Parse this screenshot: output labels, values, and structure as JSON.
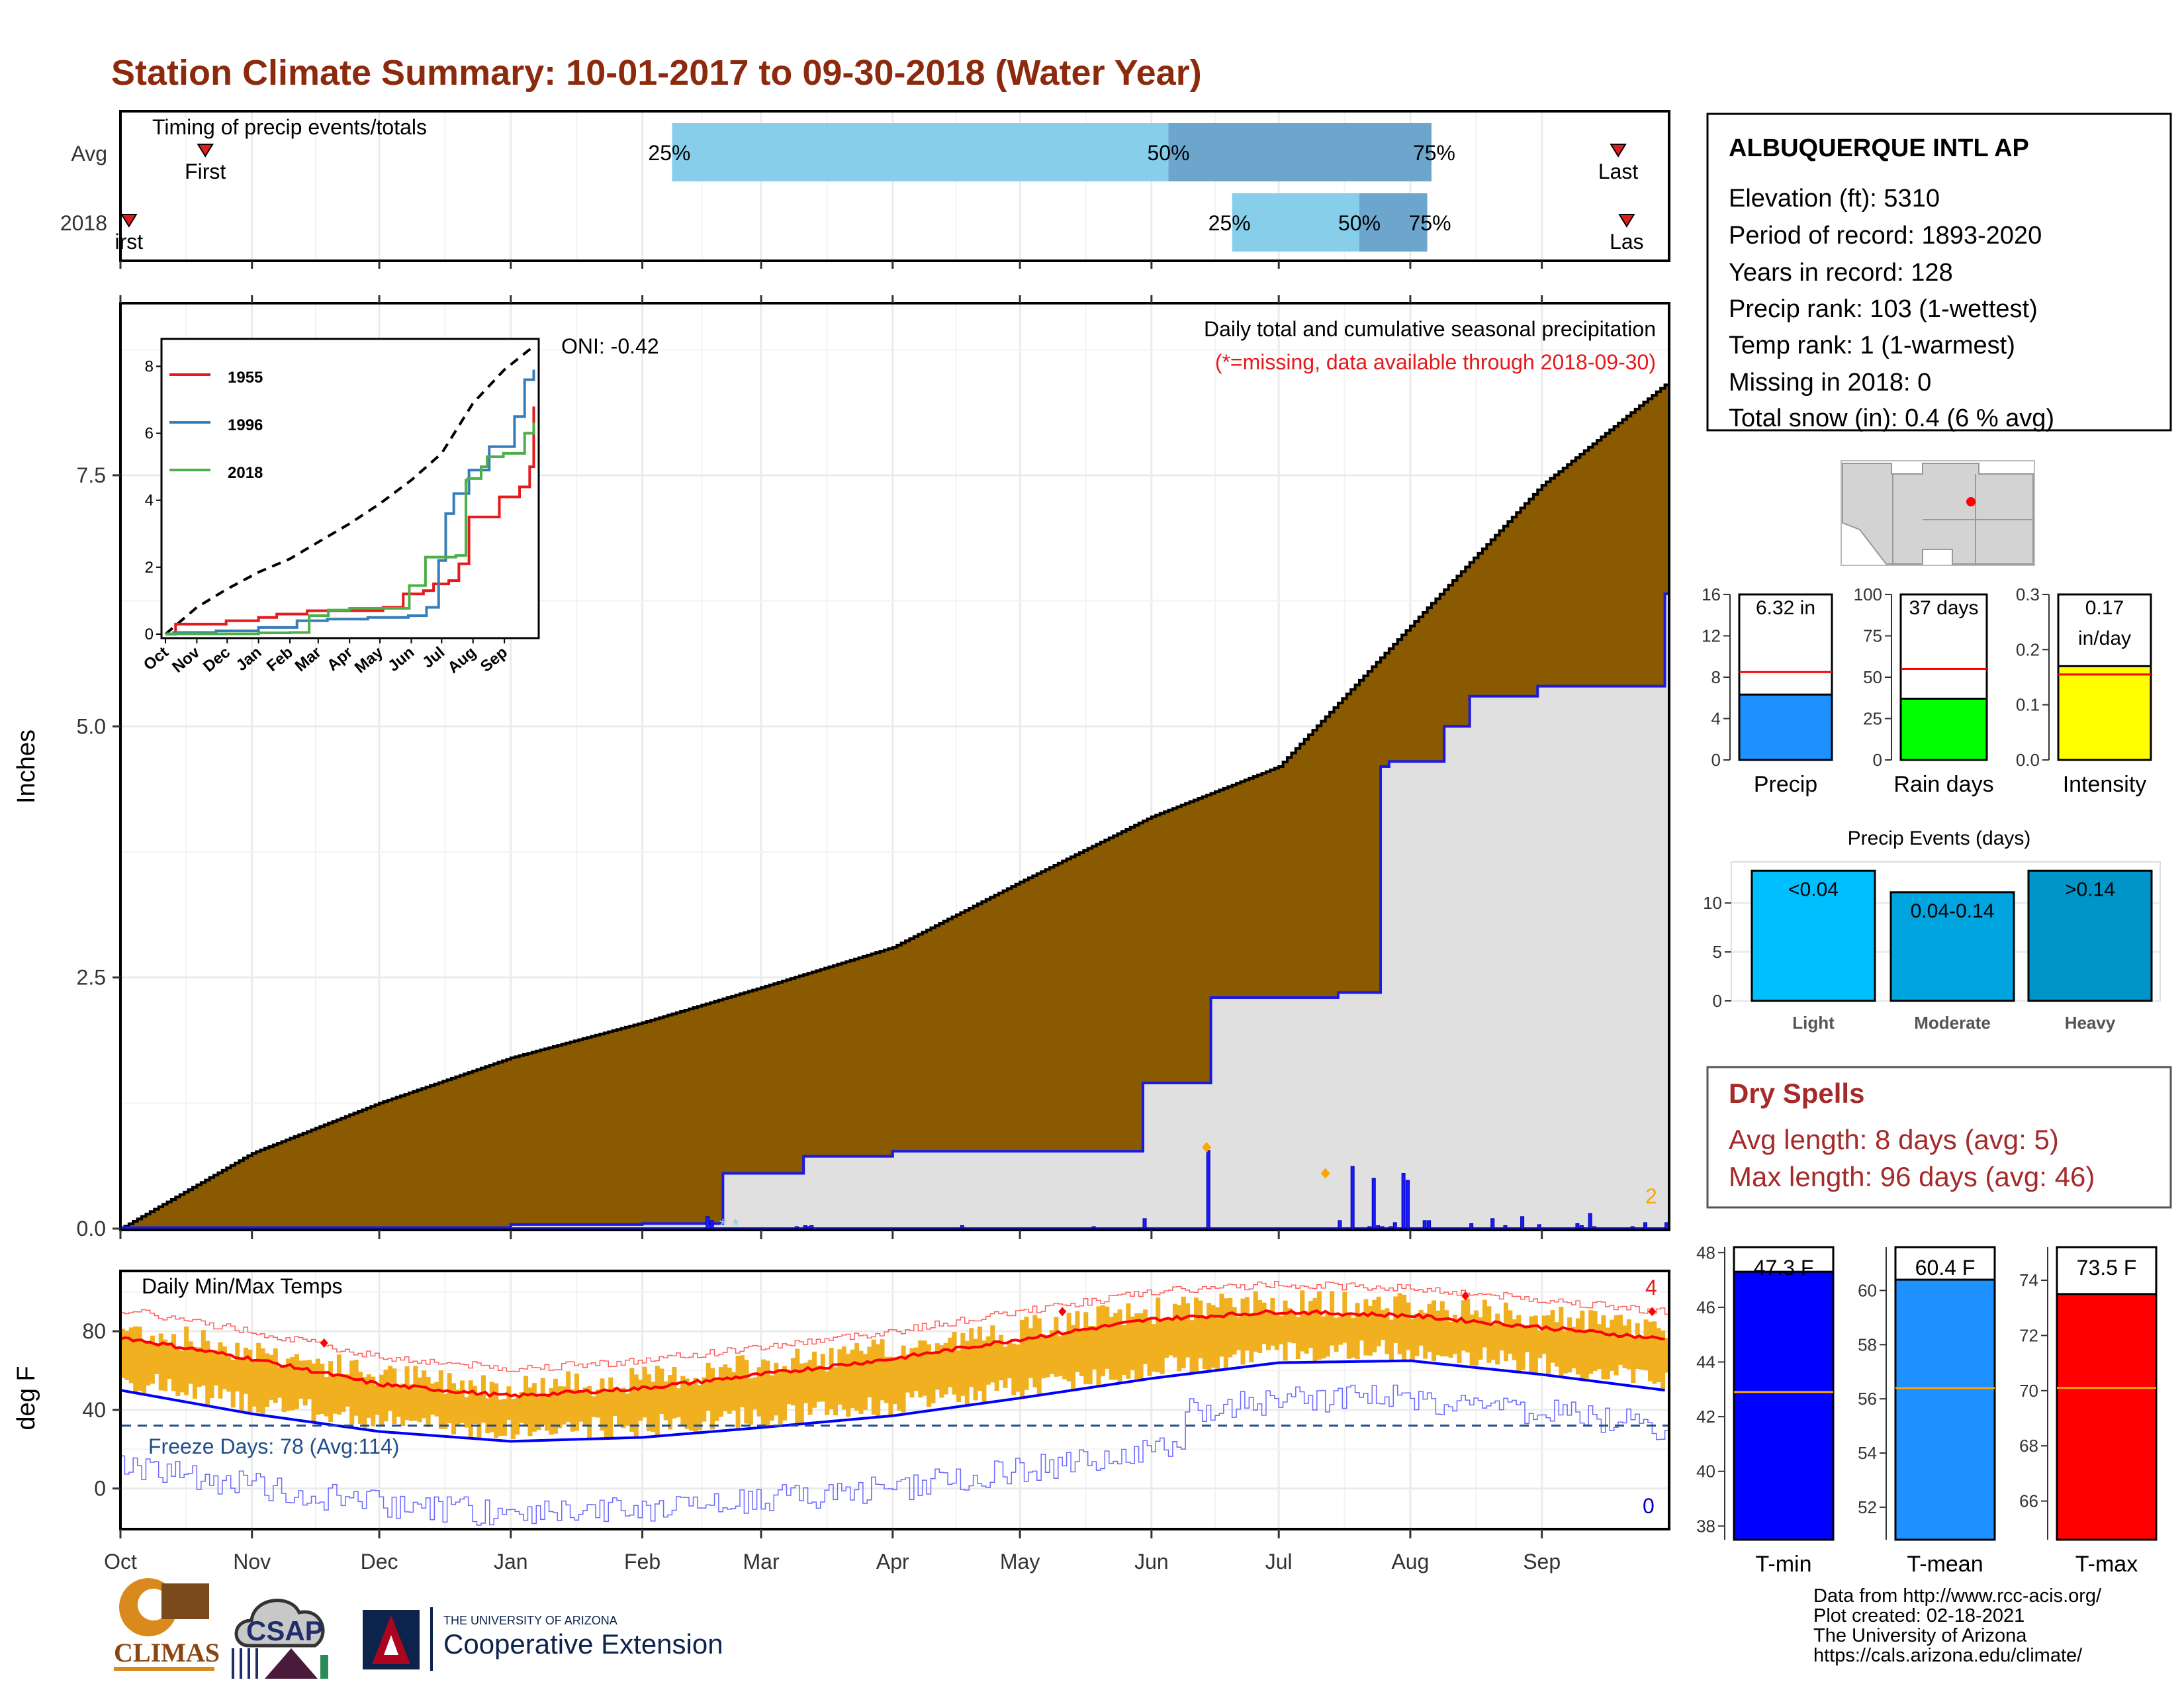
{
  "title": "Station Climate Summary: 10-01-2017 to 09-30-2018 (Water Year)",
  "timing_panel": {
    "label": "Timing of precip events/totals",
    "rows": [
      "Avg",
      "2018"
    ],
    "avg": {
      "first_label": "First",
      "last_label": "Last",
      "p25": "25%",
      "p50": "50%",
      "p75": "75%",
      "first_day": 20,
      "last_day": 353,
      "p25_day": 130,
      "p50_day": 247,
      "p75_day": 309
    },
    "y2018": {
      "first_label": "irst",
      "last_label": "Las",
      "p25": "25%",
      "p50": "50%",
      "p75": "75%",
      "first_day": 2,
      "last_day": 355,
      "p25_day": 262,
      "p50_day": 292,
      "p75_day": 308
    }
  },
  "precip_panel": {
    "annotation": "Daily total and cumulative seasonal precipitation",
    "missing_note": "(*=missing, data available through 2018-09-30)",
    "oni": "ONI: -0.42",
    "ylabel": "Inches",
    "y_ticks": [
      "0.0",
      "2.5",
      "5.0",
      "7.5"
    ],
    "count_label": "2"
  },
  "inset": {
    "legend": [
      "1955",
      "1996",
      "2018"
    ],
    "y_ticks": [
      "0",
      "2",
      "4",
      "6",
      "8"
    ],
    "x_ticks": [
      "Oct",
      "Nov",
      "Dec",
      "Jan",
      "Feb",
      "Mar",
      "Apr",
      "May",
      "Jun",
      "Jul",
      "Aug",
      "Sep"
    ],
    "colors": {
      "1955": "#e41a1c",
      "1996": "#377eb8",
      "2018": "#4daf4a",
      "avg": "#000000"
    }
  },
  "temp_panel": {
    "label": "Daily Min/Max Temps",
    "ylabel": "deg F",
    "y_ticks": [
      "0",
      "40",
      "80"
    ],
    "freeze_label": "Freeze Days: 78 (Avg:114)",
    "max_count": "4",
    "min_count": "0"
  },
  "months": [
    "Oct",
    "Nov",
    "Dec",
    "Jan",
    "Feb",
    "Mar",
    "Apr",
    "May",
    "Jun",
    "Jul",
    "Aug",
    "Sep"
  ],
  "station": {
    "name": "ALBUQUERQUE INTL AP",
    "lines": [
      "Elevation (ft): 5310",
      "Period of record: 1893-2020",
      "Years in record: 128",
      "Precip rank: 103 (1-wettest)",
      "Temp rank: 1 (1-warmest)",
      "Missing in 2018: 0",
      "Total snow (in): 0.4 (6 % avg)"
    ]
  },
  "bars_precip": {
    "precip": {
      "label": "Precip",
      "value_label": "6.32 in",
      "value": 6.32,
      "avg": 8.5,
      "ymax": 16,
      "ticks": [
        "0",
        "4",
        "8",
        "12",
        "16"
      ],
      "color": "#1e90ff"
    },
    "raindays": {
      "label": "Rain days",
      "value_label": "37 days",
      "value": 37,
      "avg": 55,
      "ymax": 100,
      "ticks": [
        "0",
        "25",
        "50",
        "75",
        "100"
      ],
      "color": "#00ff00"
    },
    "intensity": {
      "label": "Intensity",
      "value_label1": "0.17",
      "value_label2": "in/day",
      "value": 0.17,
      "avg": 0.155,
      "ymax": 0.3,
      "ticks": [
        "0.0",
        "0.1",
        "0.2",
        "0.3"
      ],
      "color": "#ffff00"
    }
  },
  "events": {
    "title": "Precip Events (days)",
    "categories": [
      "Light",
      "Moderate",
      "Heavy"
    ],
    "labels": [
      "<0.04",
      "0.04-0.14",
      ">0.14"
    ],
    "values": [
      13.3,
      11.1,
      13.3
    ],
    "ticks": [
      "0",
      "5",
      "10"
    ],
    "colors": [
      "#00bfff",
      "#00a5e0",
      "#0095c8"
    ]
  },
  "dry_spells": {
    "title": "Dry Spells",
    "avg_line": "Avg length: 8 days (avg: 5)",
    "max_line": "Max length: 96 days (avg: 46)"
  },
  "temps": {
    "tmin": {
      "label": "T-min",
      "value_label": "47.3 F",
      "value": 47.3,
      "avg": 42.9,
      "range": [
        37.5,
        48.2
      ],
      "ticks": [
        "38",
        "40",
        "42",
        "44",
        "46",
        "48"
      ],
      "color": "#0000ff"
    },
    "tmean": {
      "label": "T-mean",
      "value_label": "60.4 F",
      "value": 60.4,
      "avg": 56.4,
      "range": [
        50.8,
        61.6
      ],
      "ticks": [
        "52",
        "54",
        "56",
        "58",
        "60"
      ],
      "color": "#1e90ff"
    },
    "tmax": {
      "label": "T-max",
      "value_label": "73.5 F",
      "value": 73.5,
      "avg": 70.1,
      "range": [
        64.6,
        75.2
      ],
      "ticks": [
        "66",
        "68",
        "70",
        "72",
        "74"
      ],
      "color": "#ff0000"
    }
  },
  "footer": {
    "lines": [
      "Data from http://www.rcc-acis.org/",
      "Plot created: 02-18-2021",
      "The University of Arizona",
      "https://cals.arizona.edu/climate/"
    ],
    "climas": "CLIMAS",
    "csap": "CSAP",
    "ua_small": "THE UNIVERSITY OF ARIZONA",
    "ua_big": "Cooperative Extension"
  },
  "chart_data": [
    {
      "type": "area",
      "title": "Daily total and cumulative seasonal precipitation",
      "ylabel": "Inches",
      "ylim": [
        0,
        9.2
      ],
      "series": [
        {
          "name": "Avg cumulative",
          "x": [
            "Oct 1",
            "Nov 1",
            "Dec 1",
            "Jan 1",
            "Feb 1",
            "Mar 1",
            "Apr 1",
            "May 1",
            "Jun 1",
            "Jul 1",
            "Aug 1",
            "Sep 1",
            "Sep 30"
          ],
          "values": [
            0,
            0.75,
            1.25,
            1.7,
            2.05,
            2.4,
            2.8,
            3.45,
            4.1,
            4.6,
            6.0,
            7.4,
            8.4
          ]
        },
        {
          "name": "2018 cumulative",
          "x": [
            "Oct 1",
            "Jan 1",
            "Feb 1",
            "Feb 20",
            "Mar 11",
            "Apr 1",
            "May 30",
            "Jun 15",
            "Jul 15",
            "Jul 25",
            "Jul 27",
            "Aug 1",
            "Aug 9",
            "Aug 15",
            "Aug 31",
            "Sep 30"
          ],
          "values": [
            0.01,
            0.04,
            0.05,
            0.55,
            0.72,
            0.77,
            1.45,
            2.3,
            2.35,
            4.6,
            4.65,
            4.65,
            5.0,
            5.3,
            5.4,
            6.32
          ]
        }
      ]
    },
    {
      "type": "line",
      "title": "Daily Min/Max Temps",
      "ylabel": "deg F",
      "ylim": [
        -20,
        110
      ],
      "series": [
        {
          "name": "Avg max",
          "x": [
            "Oct",
            "Nov",
            "Dec",
            "Jan",
            "Feb",
            "Mar",
            "Apr",
            "May",
            "Jun",
            "Jul",
            "Aug",
            "Sep",
            "Sep 30"
          ],
          "values": [
            77,
            66,
            53,
            47,
            51,
            58,
            66,
            76,
            86,
            90,
            88,
            82,
            76
          ]
        },
        {
          "name": "Avg min",
          "x": [
            "Oct",
            "Nov",
            "Dec",
            "Jan",
            "Feb",
            "Mar",
            "Apr",
            "May",
            "Jun",
            "Jul",
            "Aug",
            "Sep",
            "Sep 30"
          ],
          "values": [
            50,
            38,
            29,
            24,
            26,
            31,
            37,
            46,
            56,
            64,
            65,
            58,
            50
          ]
        }
      ]
    }
  ]
}
